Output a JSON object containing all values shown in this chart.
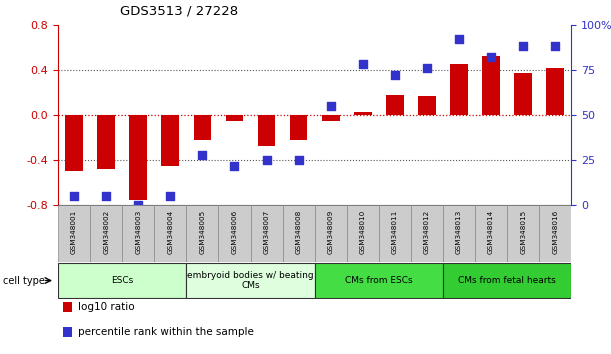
{
  "title": "GDS3513 / 27228",
  "samples": [
    "GSM348001",
    "GSM348002",
    "GSM348003",
    "GSM348004",
    "GSM348005",
    "GSM348006",
    "GSM348007",
    "GSM348008",
    "GSM348009",
    "GSM348010",
    "GSM348011",
    "GSM348012",
    "GSM348013",
    "GSM348014",
    "GSM348015",
    "GSM348016"
  ],
  "log10_ratio": [
    -0.5,
    -0.48,
    -0.75,
    -0.45,
    -0.22,
    -0.05,
    -0.27,
    -0.22,
    -0.05,
    0.03,
    0.18,
    0.17,
    0.45,
    0.52,
    0.37,
    0.42
  ],
  "percentile_rank": [
    5,
    5,
    0,
    5,
    28,
    22,
    25,
    25,
    55,
    78,
    72,
    76,
    92,
    82,
    88,
    88
  ],
  "bar_color": "#cc0000",
  "dot_color": "#3333cc",
  "ylim_left": [
    -0.8,
    0.8
  ],
  "ylim_right": [
    0,
    100
  ],
  "yticks_left": [
    -0.8,
    -0.4,
    0.0,
    0.4,
    0.8
  ],
  "yticks_right": [
    0,
    25,
    50,
    75,
    100
  ],
  "yticklabels_right": [
    "0",
    "25",
    "50",
    "75",
    "100%"
  ],
  "cell_type_groups": [
    {
      "label": "ESCs",
      "start": 0,
      "end": 3,
      "color": "#ccffcc"
    },
    {
      "label": "embryoid bodies w/ beating\nCMs",
      "start": 4,
      "end": 7,
      "color": "#ddffdd"
    },
    {
      "label": "CMs from ESCs",
      "start": 8,
      "end": 11,
      "color": "#44dd44"
    },
    {
      "label": "CMs from fetal hearts",
      "start": 12,
      "end": 15,
      "color": "#33cc33"
    }
  ],
  "cell_type_label": "cell type",
  "legend_items": [
    {
      "label": "log10 ratio",
      "color": "#cc0000"
    },
    {
      "label": "percentile rank within the sample",
      "color": "#3333cc"
    }
  ],
  "bar_width": 0.55,
  "dot_size": 30
}
